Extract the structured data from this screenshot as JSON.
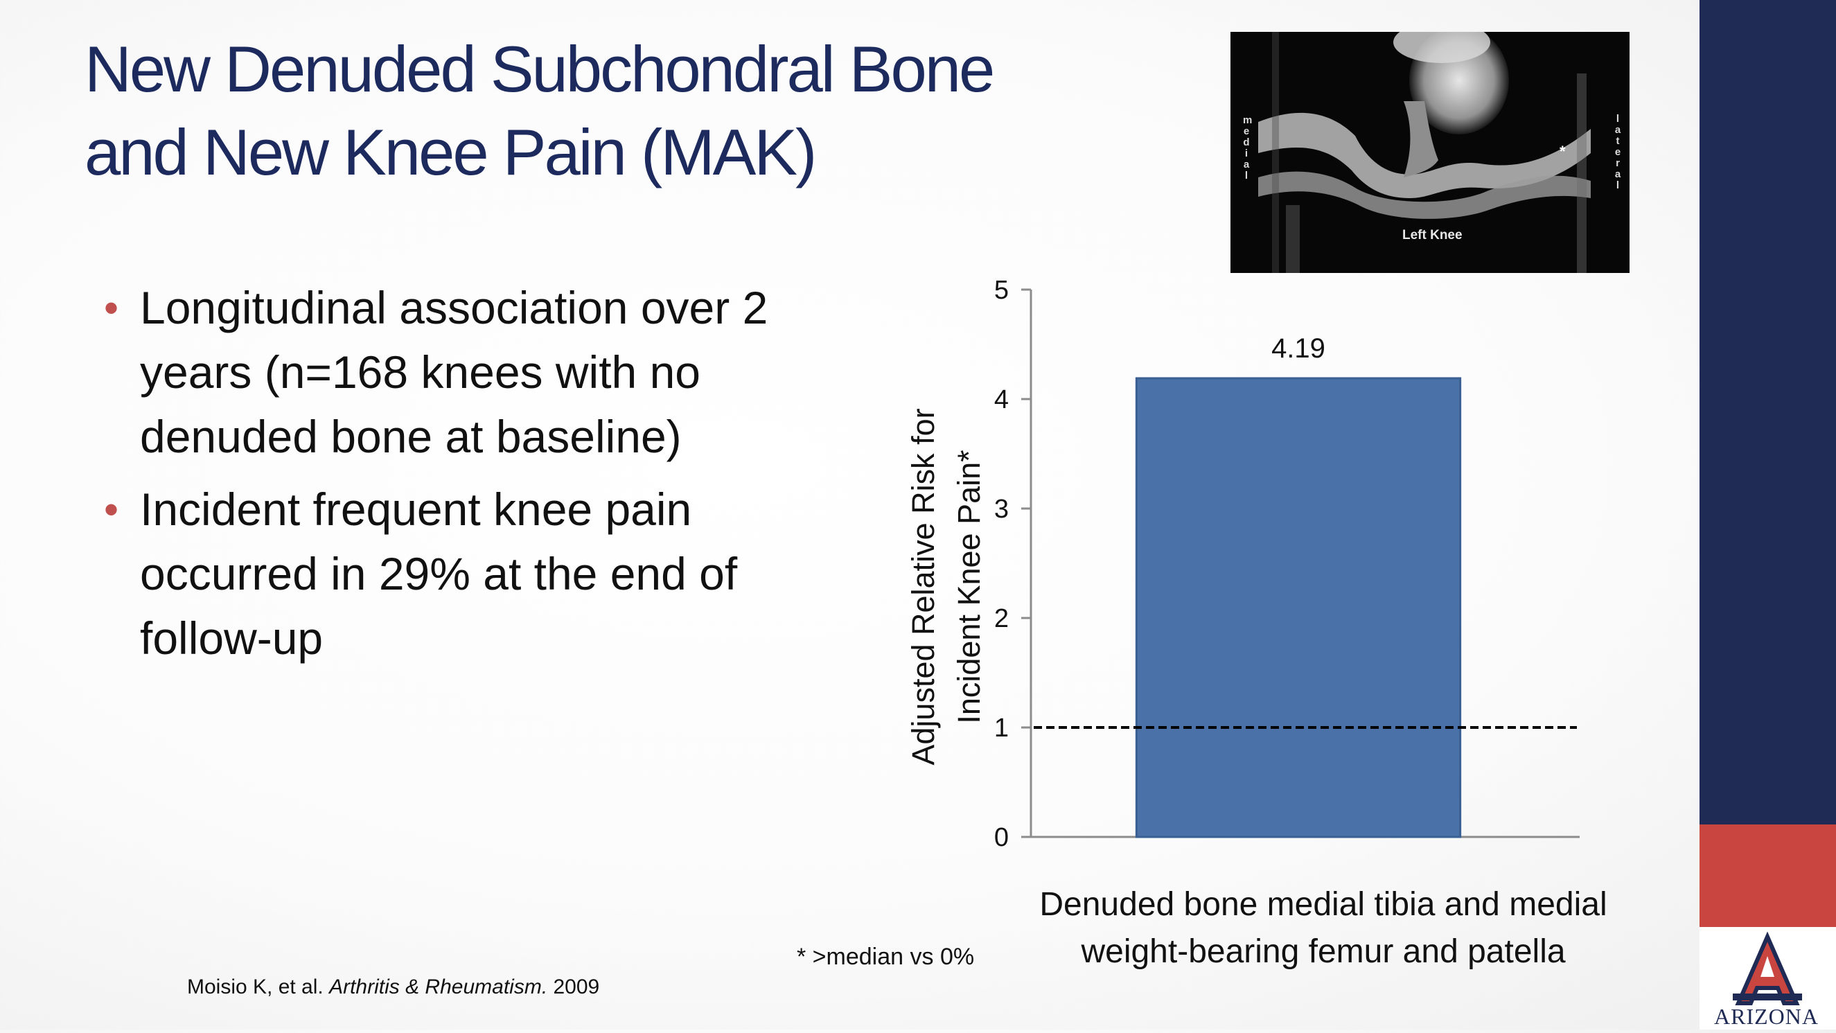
{
  "slide": {
    "title_line1": "New Denuded Subchondral Bone",
    "title_line2": "and New Knee Pain (MAK)",
    "bullets": [
      "Longitudinal association over 2 years (n=168 knees with no denuded bone at baseline)",
      "Incident frequent knee pain occurred in 29% at the end of follow-up"
    ],
    "footnote": "* >median vs 0%",
    "citation_authors": "Moisio K, et al. ",
    "citation_journal": "Arthritis & Rheumatism.",
    "citation_year": " 2009"
  },
  "mri": {
    "label": "Left Knee",
    "medial": "medial",
    "lateral": "lateral",
    "asterisk": "*"
  },
  "branding": {
    "logo_text": "ARIZONA",
    "sidebar_color": "#1f2a55",
    "accent_red": "#c8463f"
  },
  "chart_data": {
    "type": "bar",
    "categories": [
      "Denuded bone medial tibia and medial weight-bearing femur and patella"
    ],
    "values": [
      4.19
    ],
    "data_labels": [
      "4.19"
    ],
    "ylabel": "Adjusted Relative Risk for Incident Knee Pain*",
    "xlabel": "",
    "ylim": [
      0,
      5
    ],
    "yticks": [
      0,
      1,
      2,
      3,
      4,
      5
    ],
    "reference_line": 1,
    "bar_color": "#4a72a8",
    "grid": false
  }
}
